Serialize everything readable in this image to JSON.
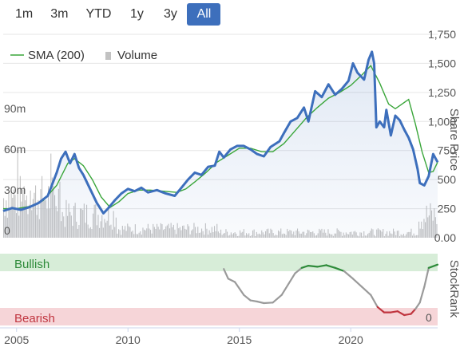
{
  "range_buttons": [
    "1m",
    "3m",
    "YTD",
    "1y",
    "3y",
    "All"
  ],
  "active_range": "All",
  "colors": {
    "price": "#3d6fbc",
    "sma": "#3aa63a",
    "volume": "#c2c2c2",
    "bullish_band": "#d7edd8",
    "bearish_band": "#f6d5d8",
    "rank_neutral": "#9a9a9a",
    "rank_bull": "#2e8b3a",
    "rank_bear": "#c0353f",
    "bullish_text": "#2e8b3a",
    "bearish_text": "#c0353f"
  },
  "chart_data": [
    {
      "type": "line",
      "title": "",
      "legend": [
        "SMA (200)",
        "Volume"
      ],
      "legend_placement": "top-left",
      "ylabel_right": "Share Price",
      "ylabel_left": "",
      "y_right_ticks": [
        "0.00",
        "250",
        "500",
        "750",
        "1,000",
        "1,250",
        "1,500",
        "1,750"
      ],
      "y_right_range": [
        0,
        1750
      ],
      "y_left_ticks": [
        "0",
        "30m",
        "60m",
        "90m"
      ],
      "y_left_range": [
        0,
        150
      ],
      "x_ticks": [
        "2005",
        "2010",
        "2015",
        "2020"
      ],
      "x_range": [
        2004.4,
        2023.9
      ],
      "series": [
        {
          "name": "Share Price",
          "values": [
            [
              2004.4,
              230
            ],
            [
              2004.8,
              255
            ],
            [
              2005.2,
              240
            ],
            [
              2005.6,
              265
            ],
            [
              2006.0,
              300
            ],
            [
              2006.4,
              360
            ],
            [
              2006.8,
              560
            ],
            [
              2007.0,
              680
            ],
            [
              2007.2,
              740
            ],
            [
              2007.4,
              640
            ],
            [
              2007.6,
              720
            ],
            [
              2007.8,
              600
            ],
            [
              2008.0,
              540
            ],
            [
              2008.3,
              420
            ],
            [
              2008.6,
              300
            ],
            [
              2008.9,
              210
            ],
            [
              2009.1,
              250
            ],
            [
              2009.4,
              320
            ],
            [
              2009.7,
              380
            ],
            [
              2010.0,
              420
            ],
            [
              2010.3,
              400
            ],
            [
              2010.6,
              430
            ],
            [
              2010.9,
              390
            ],
            [
              2011.3,
              410
            ],
            [
              2011.7,
              380
            ],
            [
              2012.1,
              360
            ],
            [
              2012.4,
              430
            ],
            [
              2012.7,
              500
            ],
            [
              2013.0,
              560
            ],
            [
              2013.3,
              540
            ],
            [
              2013.6,
              610
            ],
            [
              2013.9,
              620
            ],
            [
              2014.1,
              740
            ],
            [
              2014.3,
              690
            ],
            [
              2014.6,
              760
            ],
            [
              2014.9,
              790
            ],
            [
              2015.2,
              790
            ],
            [
              2015.5,
              760
            ],
            [
              2015.8,
              720
            ],
            [
              2016.1,
              700
            ],
            [
              2016.4,
              780
            ],
            [
              2016.8,
              830
            ],
            [
              2017.0,
              900
            ],
            [
              2017.3,
              1000
            ],
            [
              2017.6,
              1030
            ],
            [
              2017.9,
              1120
            ],
            [
              2018.1,
              1000
            ],
            [
              2018.4,
              1260
            ],
            [
              2018.7,
              1210
            ],
            [
              2019.0,
              1320
            ],
            [
              2019.3,
              1230
            ],
            [
              2019.6,
              1280
            ],
            [
              2019.9,
              1350
            ],
            [
              2020.1,
              1500
            ],
            [
              2020.3,
              1420
            ],
            [
              2020.6,
              1360
            ],
            [
              2020.8,
              1530
            ],
            [
              2020.95,
              1600
            ],
            [
              2021.05,
              1500
            ],
            [
              2021.15,
              950
            ],
            [
              2021.3,
              1000
            ],
            [
              2021.5,
              950
            ],
            [
              2021.6,
              1100
            ],
            [
              2021.8,
              880
            ],
            [
              2022.0,
              1050
            ],
            [
              2022.2,
              1010
            ],
            [
              2022.4,
              930
            ],
            [
              2022.6,
              860
            ],
            [
              2022.8,
              760
            ],
            [
              2023.0,
              590
            ],
            [
              2023.1,
              470
            ],
            [
              2023.3,
              450
            ],
            [
              2023.5,
              530
            ],
            [
              2023.7,
              720
            ],
            [
              2023.9,
              650
            ]
          ]
        },
        {
          "name": "SMA (200)",
          "values": [
            [
              2004.4,
              250
            ],
            [
              2005.0,
              250
            ],
            [
              2005.6,
              270
            ],
            [
              2006.2,
              320
            ],
            [
              2006.8,
              450
            ],
            [
              2007.3,
              640
            ],
            [
              2007.6,
              680
            ],
            [
              2008.0,
              620
            ],
            [
              2008.4,
              500
            ],
            [
              2008.8,
              350
            ],
            [
              2009.2,
              260
            ],
            [
              2009.6,
              310
            ],
            [
              2010.0,
              380
            ],
            [
              2010.5,
              410
            ],
            [
              2011.0,
              410
            ],
            [
              2011.6,
              400
            ],
            [
              2012.2,
              390
            ],
            [
              2012.6,
              420
            ],
            [
              2013.0,
              480
            ],
            [
              2013.5,
              560
            ],
            [
              2014.0,
              650
            ],
            [
              2014.5,
              710
            ],
            [
              2015.0,
              770
            ],
            [
              2015.5,
              770
            ],
            [
              2016.0,
              740
            ],
            [
              2016.5,
              740
            ],
            [
              2017.0,
              810
            ],
            [
              2017.5,
              920
            ],
            [
              2018.0,
              1030
            ],
            [
              2018.5,
              1120
            ],
            [
              2019.0,
              1200
            ],
            [
              2019.5,
              1250
            ],
            [
              2020.0,
              1310
            ],
            [
              2020.5,
              1400
            ],
            [
              2020.9,
              1480
            ],
            [
              2021.3,
              1330
            ],
            [
              2021.7,
              1150
            ],
            [
              2022.0,
              1110
            ],
            [
              2022.3,
              1150
            ],
            [
              2022.6,
              1190
            ],
            [
              2022.9,
              980
            ],
            [
              2023.2,
              740
            ],
            [
              2023.5,
              560
            ],
            [
              2023.7,
              570
            ],
            [
              2023.9,
              650
            ]
          ]
        }
      ]
    },
    {
      "type": "line",
      "title": "",
      "ylabel_right": "StockRank",
      "band_labels": [
        "Bullish",
        "Bearish"
      ],
      "y_right_ticks": [
        "0"
      ],
      "y_range": [
        0,
        100
      ],
      "series": [
        {
          "name": "StockRank",
          "values": [
            [
              2014.3,
              88
            ],
            [
              2014.5,
              70
            ],
            [
              2014.8,
              64
            ],
            [
              2015.2,
              40
            ],
            [
              2015.5,
              30
            ],
            [
              2015.8,
              28
            ],
            [
              2016.1,
              25
            ],
            [
              2016.5,
              26
            ],
            [
              2016.9,
              40
            ],
            [
              2017.2,
              60
            ],
            [
              2017.5,
              80
            ],
            [
              2017.8,
              90
            ],
            [
              2018.1,
              94
            ],
            [
              2018.5,
              92
            ],
            [
              2018.9,
              95
            ],
            [
              2019.3,
              90
            ],
            [
              2019.7,
              84
            ],
            [
              2020.1,
              70
            ],
            [
              2020.5,
              55
            ],
            [
              2020.9,
              40
            ],
            [
              2021.2,
              18
            ],
            [
              2021.5,
              8
            ],
            [
              2021.8,
              8
            ],
            [
              2022.1,
              10
            ],
            [
              2022.4,
              3
            ],
            [
              2022.7,
              5
            ],
            [
              2022.9,
              14
            ],
            [
              2023.1,
              26
            ],
            [
              2023.3,
              55
            ],
            [
              2023.5,
              90
            ],
            [
              2023.9,
              96
            ]
          ]
        }
      ]
    }
  ]
}
